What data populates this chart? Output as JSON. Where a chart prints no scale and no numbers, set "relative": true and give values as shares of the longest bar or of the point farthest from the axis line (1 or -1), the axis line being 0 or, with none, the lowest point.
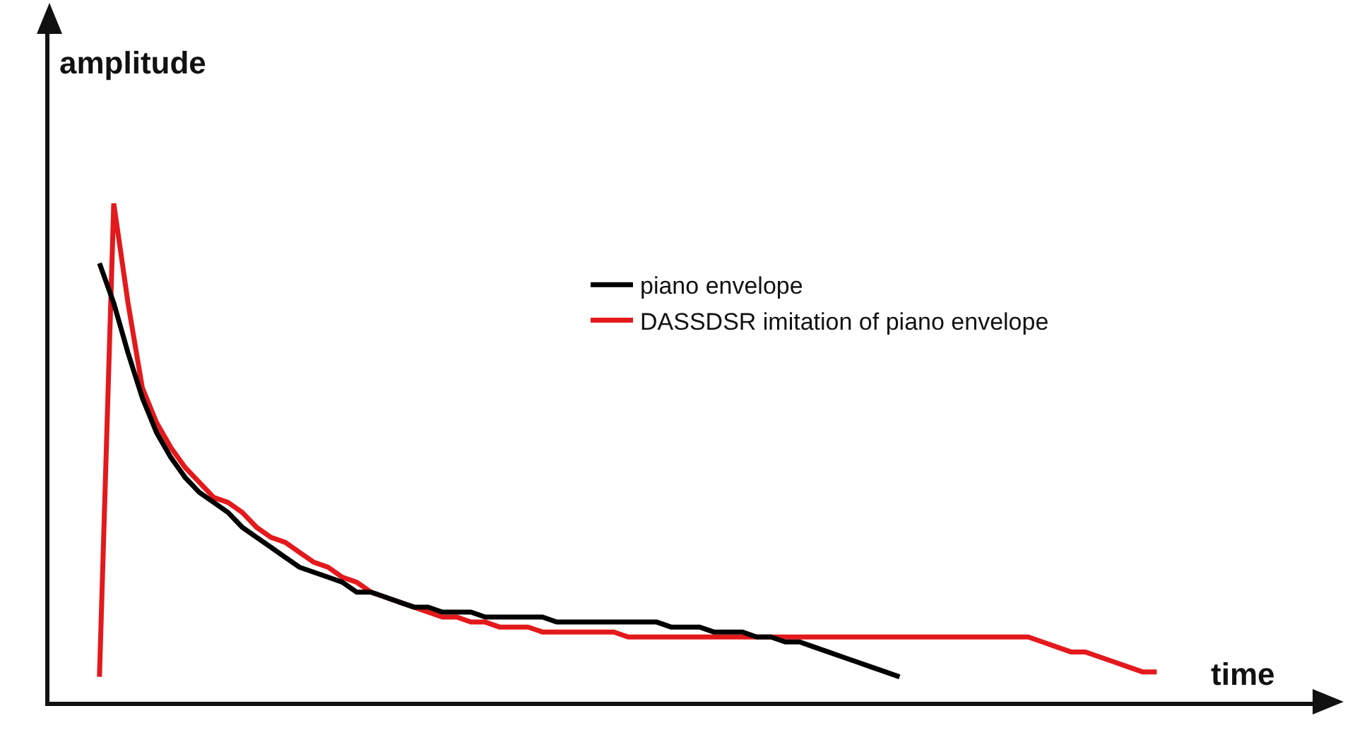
{
  "chart_data": {
    "type": "line",
    "relative": true,
    "xlabel": "time",
    "ylabel": "amplitude",
    "categories": [
      null,
      null,
      null,
      null,
      null,
      null,
      null,
      null,
      null,
      null,
      null,
      null,
      null,
      null,
      null,
      null,
      null,
      null,
      null,
      null,
      null,
      null,
      null,
      null,
      null,
      null,
      null,
      null,
      null,
      null,
      null,
      null,
      null,
      null,
      null,
      null,
      null,
      null,
      null,
      null,
      null,
      null,
      null,
      null,
      null,
      null,
      null,
      null,
      null,
      null,
      null,
      null,
      null,
      null,
      null,
      null,
      null,
      null,
      null,
      null,
      null,
      null,
      null,
      null,
      null,
      null,
      null,
      null,
      null,
      null,
      null,
      null,
      null,
      null,
      null
    ],
    "series": [
      {
        "name": "piano envelope",
        "color": "#000000",
        "values": [
          0.88,
          0.8,
          0.7,
          0.61,
          0.54,
          0.49,
          0.45,
          0.42,
          0.4,
          0.38,
          0.35,
          0.33,
          0.31,
          0.29,
          0.27,
          0.26,
          0.25,
          0.24,
          0.22,
          0.22,
          0.21,
          0.2,
          0.19,
          0.19,
          0.18,
          0.18,
          0.18,
          0.17,
          0.17,
          0.17,
          0.17,
          0.17,
          0.16,
          0.16,
          0.16,
          0.16,
          0.16,
          0.16,
          0.16,
          0.16,
          0.15,
          0.15,
          0.15,
          0.14,
          0.14,
          0.14,
          0.13,
          0.13,
          0.12,
          0.12,
          0.11,
          0.1,
          0.09,
          0.08,
          0.07,
          0.06,
          0.05,
          null,
          null,
          null,
          null,
          null,
          null,
          null,
          null,
          null,
          null,
          null,
          null,
          null,
          null,
          null,
          null,
          null,
          null
        ]
      },
      {
        "name": "DASSDSR imitation of piano envelope",
        "color": "#e3191c",
        "values": [
          0.05,
          1.0,
          0.8,
          0.63,
          0.56,
          0.51,
          0.47,
          0.44,
          0.41,
          0.4,
          0.38,
          0.35,
          0.33,
          0.32,
          0.3,
          0.28,
          0.27,
          0.25,
          0.24,
          0.22,
          0.21,
          0.2,
          0.19,
          0.18,
          0.17,
          0.17,
          0.16,
          0.16,
          0.15,
          0.15,
          0.15,
          0.14,
          0.14,
          0.14,
          0.14,
          0.14,
          0.14,
          0.13,
          0.13,
          0.13,
          0.13,
          0.13,
          0.13,
          0.13,
          0.13,
          0.13,
          0.13,
          0.13,
          0.13,
          0.13,
          0.13,
          0.13,
          0.13,
          0.13,
          0.13,
          0.13,
          0.13,
          0.13,
          0.13,
          0.13,
          0.13,
          0.13,
          0.13,
          0.13,
          0.13,
          0.13,
          0.12,
          0.11,
          0.1,
          0.1,
          0.09,
          0.08,
          0.07,
          0.06,
          0.06
        ]
      }
    ],
    "legend": "right",
    "marker": "none",
    "line_style": "solid"
  }
}
